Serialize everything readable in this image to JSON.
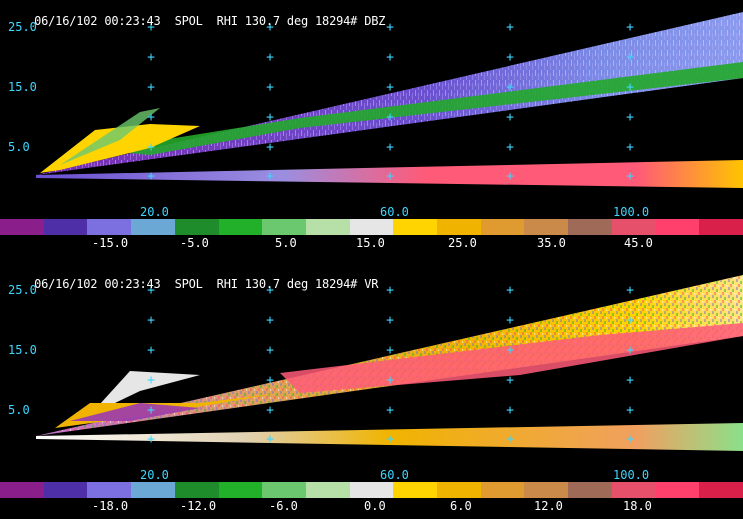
{
  "panels": [
    {
      "header": {
        "date_time": "06/16/102 00:23:43",
        "radar": "SPOL",
        "scan": "RHI 130.7 deg 18294# DBZ"
      },
      "field": "DBZ",
      "y_axis_labels": [
        "25.0",
        "15.0",
        "5.0"
      ],
      "x_axis_labels": [
        "20.0",
        "60.0",
        "100.0"
      ],
      "colorbar_colors": [
        "#8a1f8c",
        "#4f2fa8",
        "#7c6fe0",
        "#6ca8d6",
        "#1e8c2a",
        "#22b02a",
        "#6cc86e",
        "#b6e0a8",
        "#e6e6e6",
        "#ffd400",
        "#f0b400",
        "#e09b30",
        "#c98a4a",
        "#a06a58",
        "#e6506a",
        "#ff3f6c",
        "#d8204a"
      ],
      "colorbar_labels": [
        "-15.0",
        "-5.0",
        "5.0",
        "15.0",
        "25.0",
        "35.0",
        "45.0"
      ]
    },
    {
      "header": {
        "date_time": "06/16/102 00:23:43",
        "radar": "SPOL",
        "scan": "RHI 130.7 deg 18294# VR"
      },
      "field": "VR",
      "y_axis_labels": [
        "25.0",
        "15.0",
        "5.0"
      ],
      "x_axis_labels": [
        "20.0",
        "60.0",
        "100.0"
      ],
      "colorbar_colors": [
        "#8a1f8c",
        "#4f2fa8",
        "#7c6fe0",
        "#6ca8d6",
        "#1e8c2a",
        "#22b02a",
        "#6cc86e",
        "#b6e0a8",
        "#e6e6e6",
        "#ffd400",
        "#f0b400",
        "#e09b30",
        "#c98a4a",
        "#a06a58",
        "#e6506a",
        "#ff3f6c",
        "#d8204a"
      ],
      "colorbar_labels": [
        "-18.0",
        "-12.0",
        "-6.0",
        "0.0",
        "6.0",
        "12.0",
        "18.0"
      ]
    }
  ]
}
